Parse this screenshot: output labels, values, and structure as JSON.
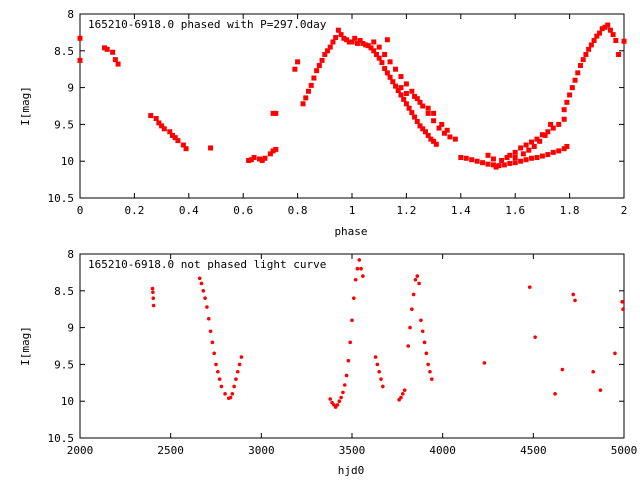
{
  "chart_data": [
    {
      "type": "scatter",
      "title": "165210-6918.0 phased with P=297.0day",
      "xlabel": "phase",
      "ylabel": "I[mag]",
      "xlim": [
        0,
        2
      ],
      "ylim": [
        10.5,
        8
      ],
      "x_ticks": [
        "0",
        "0.2",
        "0.4",
        "0.6",
        "0.8",
        "1",
        "1.2",
        "1.4",
        "1.6",
        "1.8",
        "2"
      ],
      "y_ticks": [
        "8",
        "8.5",
        "9",
        "9.5",
        "10",
        "10.5"
      ],
      "marker": "square",
      "color": "#ff0000",
      "points": [
        [
          0.0,
          8.33
        ],
        [
          0.0,
          8.63
        ],
        [
          0.09,
          8.46
        ],
        [
          0.1,
          8.48
        ],
        [
          0.12,
          8.52
        ],
        [
          0.13,
          8.62
        ],
        [
          0.14,
          8.68
        ],
        [
          0.26,
          9.38
        ],
        [
          0.28,
          9.42
        ],
        [
          0.29,
          9.48
        ],
        [
          0.3,
          9.52
        ],
        [
          0.31,
          9.56
        ],
        [
          0.33,
          9.6
        ],
        [
          0.34,
          9.65
        ],
        [
          0.35,
          9.68
        ],
        [
          0.36,
          9.72
        ],
        [
          0.38,
          9.78
        ],
        [
          0.39,
          9.83
        ],
        [
          0.48,
          9.82
        ],
        [
          0.62,
          9.99
        ],
        [
          0.63,
          9.98
        ],
        [
          0.64,
          9.95
        ],
        [
          0.66,
          9.97
        ],
        [
          0.67,
          9.99
        ],
        [
          0.68,
          9.96
        ],
        [
          0.7,
          9.9
        ],
        [
          0.71,
          9.86
        ],
        [
          0.72,
          9.84
        ],
        [
          0.71,
          9.35
        ],
        [
          0.72,
          9.35
        ],
        [
          0.79,
          8.75
        ],
        [
          0.8,
          8.65
        ],
        [
          0.82,
          9.22
        ],
        [
          0.83,
          9.14
        ],
        [
          0.84,
          9.05
        ],
        [
          0.85,
          8.97
        ],
        [
          0.86,
          8.87
        ],
        [
          0.87,
          8.77
        ],
        [
          0.88,
          8.7
        ],
        [
          0.89,
          8.63
        ],
        [
          0.9,
          8.55
        ],
        [
          0.91,
          8.5
        ],
        [
          0.92,
          8.45
        ],
        [
          0.93,
          8.38
        ],
        [
          0.94,
          8.32
        ],
        [
          0.95,
          8.22
        ],
        [
          0.96,
          8.28
        ],
        [
          0.97,
          8.33
        ],
        [
          0.98,
          8.35
        ],
        [
          0.99,
          8.38
        ],
        [
          1.0,
          8.38
        ],
        [
          1.01,
          8.33
        ],
        [
          1.02,
          8.4
        ],
        [
          1.03,
          8.36
        ],
        [
          1.04,
          8.4
        ],
        [
          1.05,
          8.42
        ],
        [
          1.06,
          8.43
        ],
        [
          1.07,
          8.46
        ],
        [
          1.08,
          8.5
        ],
        [
          1.09,
          8.55
        ],
        [
          1.1,
          8.6
        ],
        [
          1.11,
          8.66
        ],
        [
          1.12,
          8.74
        ],
        [
          1.13,
          8.8
        ],
        [
          1.14,
          8.86
        ],
        [
          1.15,
          8.92
        ],
        [
          1.16,
          8.98
        ],
        [
          1.17,
          9.04
        ],
        [
          1.18,
          9.1
        ],
        [
          1.19,
          9.16
        ],
        [
          1.2,
          9.22
        ],
        [
          1.21,
          9.28
        ],
        [
          1.22,
          9.34
        ],
        [
          1.23,
          9.4
        ],
        [
          1.24,
          9.46
        ],
        [
          1.25,
          9.52
        ],
        [
          1.26,
          9.56
        ],
        [
          1.27,
          9.6
        ],
        [
          1.28,
          9.65
        ],
        [
          1.29,
          9.7
        ],
        [
          1.3,
          9.73
        ],
        [
          1.31,
          9.77
        ],
        [
          1.08,
          8.38
        ],
        [
          1.1,
          8.45
        ],
        [
          1.12,
          8.55
        ],
        [
          1.14,
          8.65
        ],
        [
          1.16,
          8.75
        ],
        [
          1.18,
          8.85
        ],
        [
          1.2,
          8.95
        ],
        [
          1.22,
          9.05
        ],
        [
          1.24,
          9.15
        ],
        [
          1.26,
          9.25
        ],
        [
          1.28,
          9.35
        ],
        [
          1.3,
          9.45
        ],
        [
          1.32,
          9.55
        ],
        [
          1.34,
          9.62
        ],
        [
          1.36,
          9.67
        ],
        [
          1.38,
          9.7
        ],
        [
          1.13,
          8.35
        ],
        [
          1.18,
          9.0
        ],
        [
          1.2,
          9.08
        ],
        [
          1.23,
          9.12
        ],
        [
          1.25,
          9.2
        ],
        [
          1.28,
          9.28
        ],
        [
          1.3,
          9.35
        ],
        [
          1.33,
          9.5
        ],
        [
          1.35,
          9.58
        ],
        [
          1.4,
          9.95
        ],
        [
          1.42,
          9.96
        ],
        [
          1.44,
          9.98
        ],
        [
          1.46,
          10.0
        ],
        [
          1.48,
          10.02
        ],
        [
          1.5,
          10.04
        ],
        [
          1.52,
          10.05
        ],
        [
          1.54,
          10.06
        ],
        [
          1.56,
          10.05
        ],
        [
          1.58,
          10.03
        ],
        [
          1.6,
          10.02
        ],
        [
          1.62,
          10.0
        ],
        [
          1.64,
          9.98
        ],
        [
          1.66,
          9.96
        ],
        [
          1.68,
          9.95
        ],
        [
          1.7,
          9.93
        ],
        [
          1.72,
          9.91
        ],
        [
          1.74,
          9.88
        ],
        [
          1.76,
          9.86
        ],
        [
          1.78,
          9.83
        ],
        [
          1.79,
          9.8
        ],
        [
          1.5,
          9.92
        ],
        [
          1.52,
          9.97
        ],
        [
          1.53,
          10.08
        ],
        [
          1.55,
          9.99
        ],
        [
          1.57,
          9.95
        ],
        [
          1.58,
          9.92
        ],
        [
          1.6,
          9.88
        ],
        [
          1.62,
          9.82
        ],
        [
          1.64,
          9.78
        ],
        [
          1.66,
          9.74
        ],
        [
          1.68,
          9.7
        ],
        [
          1.7,
          9.64
        ],
        [
          1.72,
          9.6
        ],
        [
          1.74,
          9.55
        ],
        [
          1.76,
          9.5
        ],
        [
          1.78,
          9.43
        ],
        [
          1.6,
          9.95
        ],
        [
          1.63,
          9.9
        ],
        [
          1.65,
          9.85
        ],
        [
          1.67,
          9.8
        ],
        [
          1.69,
          9.73
        ],
        [
          1.71,
          9.65
        ],
        [
          1.73,
          9.5
        ],
        [
          1.78,
          9.3
        ],
        [
          1.79,
          9.2
        ],
        [
          1.8,
          9.1
        ],
        [
          1.81,
          9.0
        ],
        [
          1.82,
          8.9
        ],
        [
          1.83,
          8.8
        ],
        [
          1.84,
          8.7
        ],
        [
          1.85,
          8.62
        ],
        [
          1.86,
          8.55
        ],
        [
          1.87,
          8.48
        ],
        [
          1.88,
          8.42
        ],
        [
          1.89,
          8.36
        ],
        [
          1.9,
          8.3
        ],
        [
          1.91,
          8.26
        ],
        [
          1.92,
          8.2
        ],
        [
          1.93,
          8.18
        ],
        [
          1.94,
          8.15
        ],
        [
          1.95,
          8.22
        ],
        [
          1.96,
          8.28
        ],
        [
          1.97,
          8.36
        ],
        [
          1.98,
          8.55
        ],
        [
          2.0,
          8.37
        ]
      ]
    },
    {
      "type": "scatter",
      "title": "165210-6918.0 not phased light curve",
      "xlabel": "hjd0",
      "ylabel": "I[mag]",
      "xlim": [
        2000,
        5000
      ],
      "ylim": [
        10.5,
        8
      ],
      "x_ticks": [
        "2000",
        "2500",
        "3000",
        "3500",
        "4000",
        "4500",
        "5000"
      ],
      "y_ticks": [
        "8",
        "8.5",
        "9",
        "9.5",
        "10",
        "10.5"
      ],
      "marker": "dot",
      "color": "#ff0000",
      "points": [
        [
          2400,
          8.47
        ],
        [
          2402,
          8.52
        ],
        [
          2404,
          8.6
        ],
        [
          2406,
          8.7
        ],
        [
          2660,
          8.33
        ],
        [
          2670,
          8.4
        ],
        [
          2680,
          8.5
        ],
        [
          2690,
          8.6
        ],
        [
          2700,
          8.72
        ],
        [
          2710,
          8.88
        ],
        [
          2720,
          9.05
        ],
        [
          2730,
          9.2
        ],
        [
          2740,
          9.35
        ],
        [
          2750,
          9.5
        ],
        [
          2760,
          9.6
        ],
        [
          2770,
          9.7
        ],
        [
          2780,
          9.8
        ],
        [
          2800,
          9.9
        ],
        [
          2820,
          9.96
        ],
        [
          2830,
          9.95
        ],
        [
          2840,
          9.9
        ],
        [
          2850,
          9.8
        ],
        [
          2860,
          9.7
        ],
        [
          2870,
          9.6
        ],
        [
          2880,
          9.5
        ],
        [
          2890,
          9.4
        ],
        [
          3380,
          9.97
        ],
        [
          3390,
          10.02
        ],
        [
          3400,
          10.05
        ],
        [
          3410,
          10.08
        ],
        [
          3420,
          10.05
        ],
        [
          3430,
          10.0
        ],
        [
          3440,
          9.95
        ],
        [
          3450,
          9.88
        ],
        [
          3460,
          9.78
        ],
        [
          3470,
          9.65
        ],
        [
          3480,
          9.45
        ],
        [
          3490,
          9.2
        ],
        [
          3500,
          8.9
        ],
        [
          3510,
          8.6
        ],
        [
          3520,
          8.35
        ],
        [
          3530,
          8.2
        ],
        [
          3540,
          8.08
        ],
        [
          3550,
          8.2
        ],
        [
          3560,
          8.3
        ],
        [
          3630,
          9.4
        ],
        [
          3640,
          9.5
        ],
        [
          3650,
          9.6
        ],
        [
          3660,
          9.7
        ],
        [
          3670,
          9.8
        ],
        [
          3760,
          9.98
        ],
        [
          3770,
          9.95
        ],
        [
          3780,
          9.9
        ],
        [
          3790,
          9.85
        ],
        [
          3810,
          9.25
        ],
        [
          3820,
          9.0
        ],
        [
          3830,
          8.75
        ],
        [
          3840,
          8.55
        ],
        [
          3850,
          8.35
        ],
        [
          3860,
          8.3
        ],
        [
          3870,
          8.4
        ],
        [
          3880,
          8.9
        ],
        [
          3890,
          9.05
        ],
        [
          3900,
          9.2
        ],
        [
          3910,
          9.35
        ],
        [
          3920,
          9.5
        ],
        [
          3930,
          9.6
        ],
        [
          3940,
          9.7
        ],
        [
          4230,
          9.48
        ],
        [
          4480,
          8.45
        ],
        [
          4510,
          9.13
        ],
        [
          4620,
          9.9
        ],
        [
          4660,
          9.57
        ],
        [
          4720,
          8.55
        ],
        [
          4730,
          8.63
        ],
        [
          4830,
          9.6
        ],
        [
          4870,
          9.85
        ],
        [
          4950,
          9.35
        ],
        [
          4990,
          8.65
        ],
        [
          4995,
          8.75
        ]
      ]
    }
  ]
}
